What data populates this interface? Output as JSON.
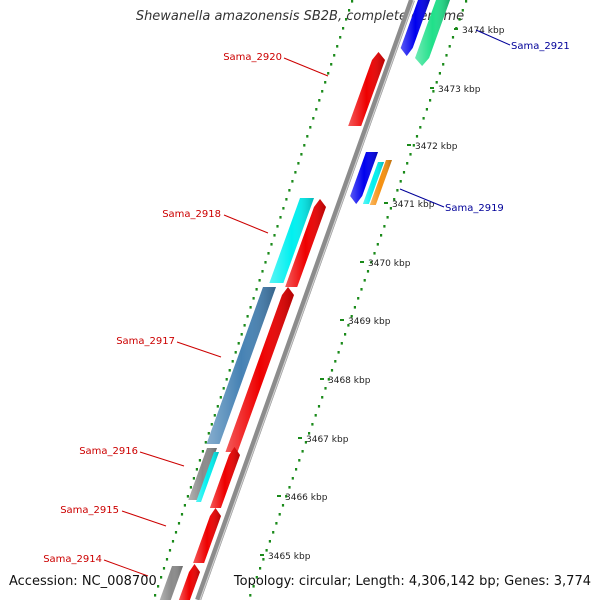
{
  "title": "Shewanella amazonensis SB2B, complete genome",
  "footer": {
    "accession": "Accession: NC_008700",
    "summary": "Topology: circular; Length: 4,306,142 bp; Genes: 3,774"
  },
  "colors": {
    "forward_label": "#cc0000",
    "reverse_label": "#000099",
    "red_gene": "#ee0000",
    "blue_gene": "#0000ee",
    "cyan_gene": "#00f0f0",
    "steelblue_gene": "#4682b4",
    "gray_gene": "#8a8a8a",
    "orange_gene": "#f5900f",
    "mint_gene": "#20e08a",
    "backbone": "#8c8c8c",
    "dots": "#1a8a1a"
  },
  "ticks": [
    {
      "label": "3474 kbp"
    },
    {
      "label": "3473 kbp"
    },
    {
      "label": "3472 kbp"
    },
    {
      "label": "3471 kbp"
    },
    {
      "label": "3470 kbp"
    },
    {
      "label": "3469 kbp"
    },
    {
      "label": "3468 kbp"
    },
    {
      "label": "3467 kbp"
    },
    {
      "label": "3466 kbp"
    },
    {
      "label": "3465 kbp"
    }
  ],
  "gene_labels": [
    {
      "name": "Sama_2921",
      "strand": "reverse"
    },
    {
      "name": "Sama_2920",
      "strand": "forward"
    },
    {
      "name": "Sama_2919",
      "strand": "reverse"
    },
    {
      "name": "Sama_2918",
      "strand": "forward"
    },
    {
      "name": "Sama_2917",
      "strand": "forward"
    },
    {
      "name": "Sama_2916",
      "strand": "forward"
    },
    {
      "name": "Sama_2915",
      "strand": "forward"
    },
    {
      "name": "Sama_2914",
      "strand": "forward"
    }
  ]
}
